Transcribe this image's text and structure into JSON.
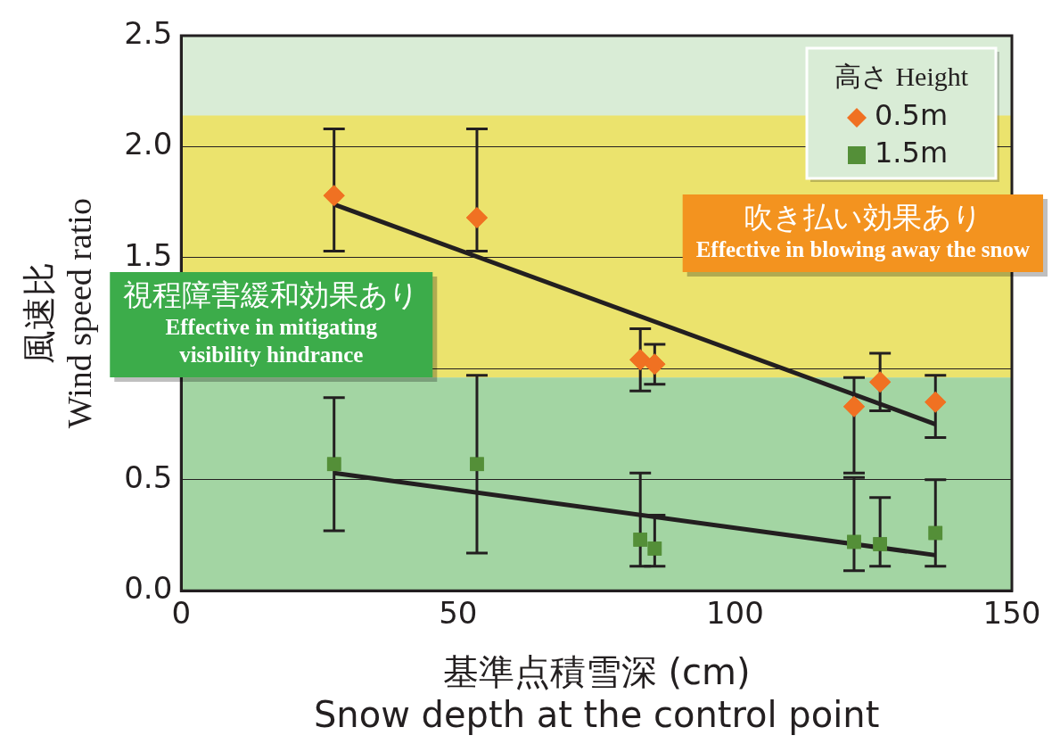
{
  "chart_data": {
    "type": "scatter",
    "xlabel": "基準点積雪深 (cm)\nSnow depth at the control point",
    "ylabel": "風速比\nWind speed ratio",
    "legend_title": "高さ Height",
    "xlim": [
      0,
      150
    ],
    "xticks": [
      0,
      50,
      100,
      150
    ],
    "ylim": [
      0,
      2.5
    ],
    "yticks": [
      {
        "value": 0,
        "label": "0.0"
      },
      0.5,
      {
        "value": 1,
        "label": null
      },
      1.5,
      {
        "value": 2,
        "label": "2.0"
      },
      2.5
    ],
    "grid": "y",
    "legend": "top right",
    "series": [
      {
        "name": "0.5m",
        "color": "#f07122",
        "marker": "diamond",
        "x": [
          27.6,
          53.4,
          82.9,
          85.5,
          121.5,
          126.2,
          136.2
        ],
        "values": [
          1.78,
          1.68,
          1.04,
          1.02,
          0.83,
          0.94,
          0.85
        ],
        "errors": [
          [
            1.53,
            2.08
          ],
          [
            1.53,
            2.08
          ],
          [
            0.9,
            1.18
          ],
          [
            0.93,
            1.11
          ],
          [
            0.53,
            0.96
          ],
          [
            0.81,
            1.07
          ],
          [
            0.69,
            0.97
          ]
        ]
      },
      {
        "name": "1.5m",
        "color": "#548f38",
        "marker": "square",
        "x": [
          27.6,
          53.4,
          82.9,
          85.5,
          121.5,
          126.2,
          136.2
        ],
        "values": [
          0.57,
          0.57,
          0.23,
          0.19,
          0.22,
          0.21,
          0.26
        ],
        "errors": [
          0.3,
          0.4,
          [
            0.11,
            0.53
          ],
          [
            0.11,
            0.34
          ],
          [
            0.09,
            0.51
          ],
          [
            0.11,
            0.42
          ],
          [
            0.11,
            0.5
          ]
        ]
      },
      {
        "type": "line",
        "color": "#231f20",
        "marker": "none",
        "x": [
          27.6,
          136.2
        ],
        "values": [
          1.74,
          0.75
        ]
      },
      {
        "type": "line",
        "color": "#231f20",
        "marker": "none",
        "x": [
          27.6,
          136.2
        ],
        "values": [
          0.53,
          0.16
        ]
      }
    ],
    "bands": [
      {
        "axis": "y",
        "from": 0.96,
        "to": 2.14,
        "color": "#ebe36d",
        "label": "吹き払い効果あり\nEffective in blowing away the snow"
      },
      {
        "axis": "y",
        "from": 0,
        "to": 0.96,
        "color": "#a3d5a3",
        "label": "視程障害緩和効果あり\nEffective in mitigating\nvisibility hindrance"
      }
    ]
  }
}
